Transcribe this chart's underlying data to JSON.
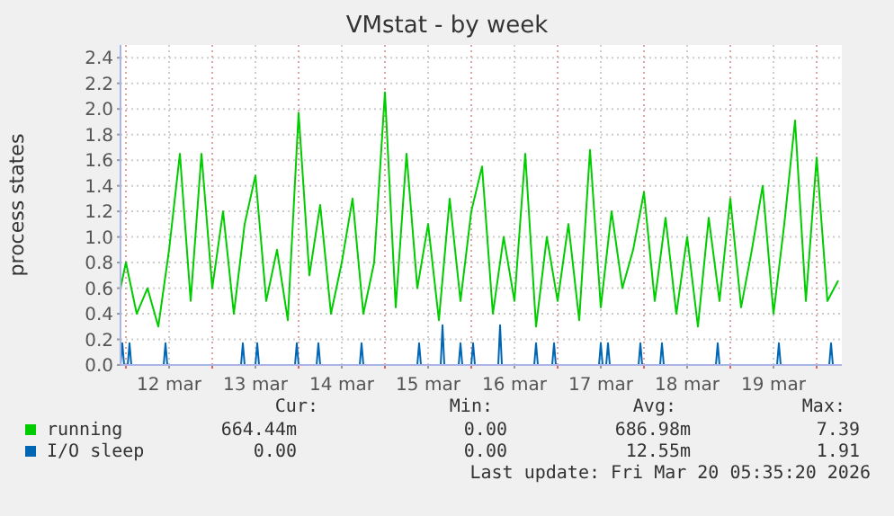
{
  "chart_data": {
    "type": "line",
    "title": "VMstat - by week",
    "ylabel": "process states",
    "xlim": [
      "2026-03-11T22:30",
      "2026-03-20T07:00"
    ],
    "xticks": [
      {
        "value": "2026-03-12T00:00",
        "label": null
      },
      {
        "value": "2026-03-12T12:00",
        "label": "12 mar"
      },
      {
        "value": "2026-03-13T00:00",
        "label": null
      },
      {
        "value": "2026-03-13T12:00",
        "label": "13 mar"
      },
      {
        "value": "2026-03-14T00:00",
        "label": null
      },
      {
        "value": "2026-03-14T12:00",
        "label": "14 mar"
      },
      {
        "value": "2026-03-15T00:00",
        "label": null
      },
      {
        "value": "2026-03-15T12:00",
        "label": "15 mar"
      },
      {
        "value": "2026-03-16T00:00",
        "label": null
      },
      {
        "value": "2026-03-16T12:00",
        "label": "16 mar"
      },
      {
        "value": "2026-03-17T00:00",
        "label": null
      },
      {
        "value": "2026-03-17T12:00",
        "label": "17 mar"
      },
      {
        "value": "2026-03-18T00:00",
        "label": null
      },
      {
        "value": "2026-03-18T12:00",
        "label": "18 mar"
      },
      {
        "value": "2026-03-19T00:00",
        "label": null
      },
      {
        "value": "2026-03-19T12:00",
        "label": "19 mar"
      },
      {
        "value": "2026-03-20T00:00",
        "label": null
      }
    ],
    "ylim": [
      0,
      2.5
    ],
    "yticks": [
      {
        "value": 0,
        "label": "0.0"
      },
      {
        "value": 0.2,
        "label": "0.2"
      },
      {
        "value": 0.4,
        "label": "0.4"
      },
      {
        "value": 0.6,
        "label": "0.6"
      },
      {
        "value": 0.8,
        "label": "0.8"
      },
      {
        "value": 1,
        "label": "1.0"
      },
      {
        "value": 1.2,
        "label": "1.2"
      },
      {
        "value": 1.4,
        "label": "1.4"
      },
      {
        "value": 1.6,
        "label": "1.6"
      },
      {
        "value": 1.8,
        "label": "1.8"
      },
      {
        "value": 2,
        "label": "2.0"
      },
      {
        "value": 2.2,
        "label": "2.2"
      },
      {
        "value": 2.4,
        "label": "2.4"
      }
    ],
    "grid": true,
    "legend": "bottom",
    "marker": "none",
    "line_style": "solid",
    "series": [
      {
        "name": "running",
        "color": "#00cc00",
        "x": [
          "2026-03-11T22:30",
          "2026-03-12T00:00",
          "2026-03-12T03:00",
          "2026-03-12T06:00",
          "2026-03-12T09:00",
          "2026-03-12T12:00",
          "2026-03-12T15:00",
          "2026-03-12T18:00",
          "2026-03-12T21:00",
          "2026-03-13T00:00",
          "2026-03-13T03:00",
          "2026-03-13T06:00",
          "2026-03-13T09:00",
          "2026-03-13T12:00",
          "2026-03-13T15:00",
          "2026-03-13T18:00",
          "2026-03-13T21:00",
          "2026-03-14T00:00",
          "2026-03-14T03:00",
          "2026-03-14T06:00",
          "2026-03-14T09:00",
          "2026-03-14T12:00",
          "2026-03-14T15:00",
          "2026-03-14T18:00",
          "2026-03-14T21:00",
          "2026-03-15T00:00",
          "2026-03-15T03:00",
          "2026-03-15T06:00",
          "2026-03-15T09:00",
          "2026-03-15T12:00",
          "2026-03-15T15:00",
          "2026-03-15T18:00",
          "2026-03-15T21:00",
          "2026-03-16T00:00",
          "2026-03-16T03:00",
          "2026-03-16T06:00",
          "2026-03-16T09:00",
          "2026-03-16T12:00",
          "2026-03-16T15:00",
          "2026-03-16T18:00",
          "2026-03-16T21:00",
          "2026-03-17T00:00",
          "2026-03-17T03:00",
          "2026-03-17T06:00",
          "2026-03-17T09:00",
          "2026-03-17T12:00",
          "2026-03-17T15:00",
          "2026-03-17T18:00",
          "2026-03-17T21:00",
          "2026-03-18T00:00",
          "2026-03-18T03:00",
          "2026-03-18T06:00",
          "2026-03-18T09:00",
          "2026-03-18T12:00",
          "2026-03-18T15:00",
          "2026-03-18T18:00",
          "2026-03-18T21:00",
          "2026-03-19T00:00",
          "2026-03-19T03:00",
          "2026-03-19T06:00",
          "2026-03-19T09:00",
          "2026-03-19T12:00",
          "2026-03-19T15:00",
          "2026-03-19T18:00",
          "2026-03-19T21:00",
          "2026-03-20T00:00",
          "2026-03-20T03:00",
          "2026-03-20T06:00"
        ],
        "values": [
          0.6,
          0.8,
          0.4,
          0.6,
          0.3,
          0.9,
          1.65,
          0.5,
          1.65,
          0.6,
          1.2,
          0.4,
          1.1,
          1.48,
          0.5,
          0.9,
          0.35,
          1.97,
          0.7,
          1.25,
          0.4,
          0.8,
          1.3,
          0.4,
          0.8,
          2.13,
          0.45,
          1.65,
          0.6,
          1.1,
          0.35,
          1.3,
          0.5,
          1.2,
          1.55,
          0.4,
          1.0,
          0.5,
          1.65,
          0.3,
          1.0,
          0.5,
          1.1,
          0.35,
          1.68,
          0.45,
          1.2,
          0.6,
          0.9,
          1.35,
          0.5,
          1.15,
          0.4,
          1.0,
          0.3,
          1.15,
          0.5,
          1.3,
          0.45,
          0.9,
          1.4,
          0.4,
          1.1,
          1.91,
          0.5,
          1.62,
          0.5,
          0.66
        ]
      },
      {
        "name": "I/O sleep",
        "color": "#0066b3",
        "x": [
          "2026-03-11T22:30",
          "2026-03-11T23:00",
          "2026-03-11T23:30",
          "2026-03-12T00:30",
          "2026-03-12T01:00",
          "2026-03-12T01:30",
          "2026-03-12T10:30",
          "2026-03-12T11:00",
          "2026-03-12T11:30",
          "2026-03-13T08:00",
          "2026-03-13T08:30",
          "2026-03-13T09:00",
          "2026-03-13T12:00",
          "2026-03-13T12:30",
          "2026-03-13T13:00",
          "2026-03-13T23:00",
          "2026-03-13T23:30",
          "2026-03-14T00:00",
          "2026-03-14T05:00",
          "2026-03-14T05:30",
          "2026-03-14T06:00",
          "2026-03-14T17:00",
          "2026-03-14T17:30",
          "2026-03-14T18:00",
          "2026-03-15T09:00",
          "2026-03-15T09:30",
          "2026-03-15T10:00",
          "2026-03-15T15:30",
          "2026-03-15T16:00",
          "2026-03-15T16:30",
          "2026-03-15T20:30",
          "2026-03-15T21:00",
          "2026-03-15T21:30",
          "2026-03-16T00:00",
          "2026-03-16T00:30",
          "2026-03-16T01:00",
          "2026-03-16T07:30",
          "2026-03-16T08:00",
          "2026-03-16T08:30",
          "2026-03-16T17:30",
          "2026-03-16T18:00",
          "2026-03-16T18:30",
          "2026-03-16T22:30",
          "2026-03-16T23:00",
          "2026-03-16T23:30",
          "2026-03-17T11:30",
          "2026-03-17T12:00",
          "2026-03-17T12:30",
          "2026-03-17T13:30",
          "2026-03-17T14:00",
          "2026-03-17T14:30",
          "2026-03-17T22:30",
          "2026-03-17T23:00",
          "2026-03-17T23:30",
          "2026-03-18T04:30",
          "2026-03-18T05:00",
          "2026-03-18T05:30",
          "2026-03-18T20:00",
          "2026-03-18T20:30",
          "2026-03-18T21:00",
          "2026-03-19T13:00",
          "2026-03-19T13:30",
          "2026-03-19T14:00",
          "2026-03-20T03:30",
          "2026-03-20T04:00",
          "2026-03-20T04:30",
          "2026-03-20T06:00"
        ],
        "values": [
          0,
          0.17,
          0,
          0,
          0.17,
          0,
          0,
          0.17,
          0,
          0,
          0.17,
          0,
          0,
          0.17,
          0,
          0,
          0.17,
          0,
          0,
          0.17,
          0,
          0,
          0.17,
          0,
          0,
          0.17,
          0,
          0,
          0.31,
          0,
          0,
          0.17,
          0,
          0,
          0.17,
          0,
          0,
          0.31,
          0,
          0,
          0.17,
          0,
          0,
          0.17,
          0,
          0,
          0.17,
          0,
          0,
          0.17,
          0,
          0,
          0.17,
          0,
          0,
          0.17,
          0,
          0,
          0.17,
          0,
          0,
          0.17,
          0,
          0,
          0.17,
          0,
          0
        ]
      }
    ],
    "annotations": [
      "Cur:",
      "Min:",
      "Avg:",
      "Max:",
      "664.44m",
      "0.00",
      "686.98m",
      "7.39",
      "0.00",
      "0.00",
      "12.55m",
      "1.91",
      "Last update: Fri Mar 20 05:35:20 2026"
    ]
  }
}
